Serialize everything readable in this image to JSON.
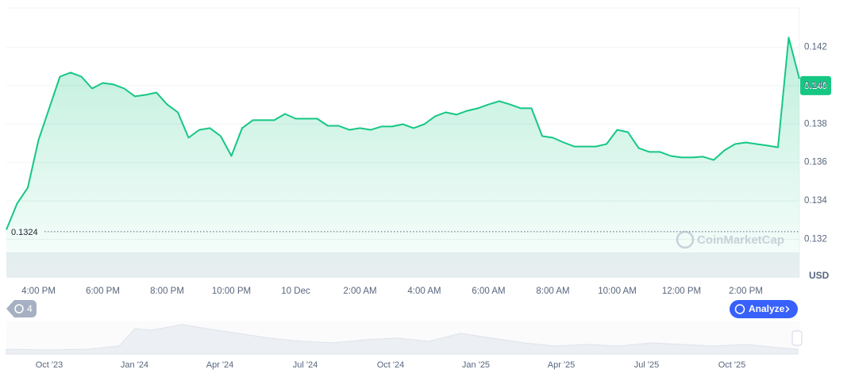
{
  "chart_data": {
    "type": "line",
    "unit": "USD",
    "watermark": "CoinMarketCap",
    "color": "#16c784",
    "categories": [
      null,
      null,
      null,
      "4:00 PM",
      null,
      null,
      null,
      null,
      null,
      "6:00 PM",
      null,
      null,
      null,
      null,
      null,
      "8:00 PM",
      null,
      null,
      null,
      null,
      null,
      "10:00 PM",
      null,
      null,
      null,
      null,
      null,
      "10 Dec",
      null,
      null,
      null,
      null,
      null,
      "2:00 AM",
      null,
      null,
      null,
      null,
      null,
      "4:00 AM",
      null,
      null,
      null,
      null,
      null,
      "6:00 AM",
      null,
      null,
      null,
      null,
      null,
      "8:00 AM",
      null,
      null,
      null,
      null,
      null,
      "10:00 AM",
      null,
      null,
      null,
      null,
      null,
      "12:00 PM",
      null,
      null,
      null,
      null,
      null,
      "2:00 PM",
      null,
      null,
      null,
      null,
      null
    ],
    "values": [
      0.1325,
      0.13386,
      0.13469,
      0.13717,
      0.13882,
      0.14047,
      0.14068,
      0.14047,
      0.13985,
      0.14014,
      0.14006,
      0.13985,
      0.13944,
      0.13952,
      0.13964,
      0.13902,
      0.13861,
      0.13729,
      0.1377,
      0.13779,
      0.13737,
      0.13634,
      0.13779,
      0.1382,
      0.1382,
      0.1382,
      0.13853,
      0.13828,
      0.13828,
      0.13828,
      0.13791,
      0.13791,
      0.1377,
      0.13779,
      0.1377,
      0.13787,
      0.13787,
      0.13799,
      0.13779,
      0.13799,
      0.1384,
      0.13861,
      0.13849,
      0.13869,
      0.13882,
      0.13902,
      0.13919,
      0.13902,
      0.13882,
      0.13882,
      0.13737,
      0.13729,
      0.13704,
      0.13683,
      0.13683,
      0.13683,
      0.13696,
      0.1377,
      0.13758,
      0.13675,
      0.13655,
      0.13655,
      0.13634,
      0.13626,
      0.13626,
      0.1363,
      0.13613,
      0.13663,
      0.13696,
      0.13704,
      0.13696,
      0.13688,
      0.13679,
      0.1425,
      0.14035
    ],
    "reference_line": 0.1324,
    "last_price": {
      "value": 0.14,
      "label": "0.140"
    },
    "ylim": [
      0.13,
      0.144
    ],
    "yticks": [
      0.132,
      0.134,
      0.136,
      0.138,
      {
        "value": 0.14,
        "label": "0.140"
      },
      0.142
    ],
    "grid": true
  },
  "controls": {
    "history_count": 4,
    "analyze": "Analyze"
  },
  "navigator": {
    "labels": [
      "Oct '23",
      "Jan '24",
      "Apr '24",
      "Jul '24",
      "Oct '24",
      "Jan '25",
      "Apr '25",
      "Jul '25",
      "Oct '25"
    ]
  }
}
